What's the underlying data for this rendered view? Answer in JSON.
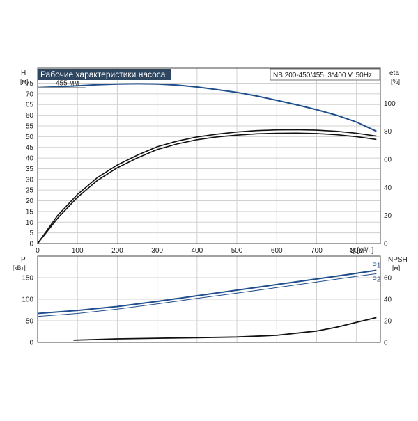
{
  "chart_data": [
    {
      "type": "line",
      "title": "Рабочие характеристики насоса",
      "subtitle": "NB 200-450/455, 3*400 V, 50Hz",
      "xlabel": "Q [м³/ч]",
      "ylabel_left": "H",
      "ylabel_left_unit": "[м]",
      "ylabel_right": "eta",
      "ylabel_right_unit": "[%]",
      "xlim": [
        0,
        860
      ],
      "ylim_left": [
        0,
        80
      ],
      "ylim_right": [
        0,
        100
      ],
      "x_ticks": [
        0,
        100,
        200,
        300,
        400,
        500,
        600,
        700,
        800
      ],
      "y_ticks_left": [
        0,
        5,
        10,
        15,
        20,
        25,
        30,
        35,
        40,
        45,
        50,
        55,
        60,
        65,
        70,
        75
      ],
      "y_ticks_right": [
        0,
        20,
        40,
        60,
        80,
        100
      ],
      "grid": true,
      "colors": {
        "head": "#1f4e8c",
        "eff": "#111111",
        "title_bg": "#2e4660"
      },
      "annotations": [
        "455 мм"
      ],
      "series": [
        {
          "name": "455 мм",
          "axis": "left",
          "x": [
            0,
            50,
            100,
            150,
            200,
            250,
            300,
            350,
            400,
            450,
            500,
            550,
            600,
            650,
            700,
            750,
            800,
            850
          ],
          "y": [
            73,
            73.3,
            73.8,
            74.3,
            74.6,
            74.7,
            74.6,
            74.1,
            73.2,
            72.0,
            70.7,
            69.0,
            67.0,
            64.9,
            62.6,
            60.0,
            56.8,
            52.5
          ]
        },
        {
          "name": "",
          "axis": "right",
          "x": [
            0,
            50,
            100,
            150,
            200,
            250,
            300,
            350,
            400,
            450,
            500,
            550,
            600,
            650,
            700,
            750,
            800,
            850
          ],
          "y": [
            0,
            18,
            33,
            45,
            54,
            61,
            67,
            71,
            74,
            76,
            77.3,
            78.2,
            78.6,
            78.7,
            78.4,
            77.6,
            76.2,
            74.2
          ]
        },
        {
          "name": "",
          "axis": "right",
          "x": [
            0,
            50,
            100,
            150,
            200,
            250,
            300,
            350,
            400,
            450,
            500,
            550,
            600,
            650,
            700,
            750,
            800,
            850
          ],
          "y": [
            0,
            20,
            35,
            47,
            56,
            63,
            69,
            73,
            76,
            78,
            79.5,
            80.5,
            81.0,
            81.1,
            80.8,
            80.0,
            78.6,
            76.6
          ]
        }
      ]
    },
    {
      "type": "line",
      "ylabel_left": "P",
      "ylabel_left_unit": "[кВт]",
      "ylabel_right": "NPSH",
      "ylabel_right_unit": "[м]",
      "xlim": [
        0,
        860
      ],
      "ylim_left": [
        0,
        200
      ],
      "ylim_right": [
        0,
        80
      ],
      "y_ticks_left": [
        0,
        50,
        100,
        150
      ],
      "y_ticks_right": [
        0,
        20,
        40,
        60
      ],
      "grid": true,
      "colors": {
        "power": "#1f4e8c",
        "npsh": "#111111"
      },
      "series": [
        {
          "name": "P1",
          "axis": "left",
          "x": [
            0,
            100,
            200,
            300,
            400,
            500,
            600,
            700,
            800,
            850
          ],
          "y": [
            67,
            74,
            83,
            95,
            108,
            121,
            134,
            147,
            160,
            167
          ]
        },
        {
          "name": "P2",
          "axis": "left",
          "x": [
            0,
            100,
            200,
            300,
            400,
            500,
            600,
            700,
            800,
            850
          ],
          "y": [
            60,
            67,
            77,
            89,
            102,
            114,
            127,
            140,
            153,
            159
          ]
        },
        {
          "name": "",
          "axis": "right",
          "x": [
            90,
            200,
            300,
            400,
            500,
            600,
            700,
            750,
            800,
            850
          ],
          "y": [
            2,
            3.2,
            3.8,
            4.3,
            5.0,
            6.5,
            10.5,
            14.0,
            18.5,
            23.0
          ]
        }
      ]
    }
  ]
}
